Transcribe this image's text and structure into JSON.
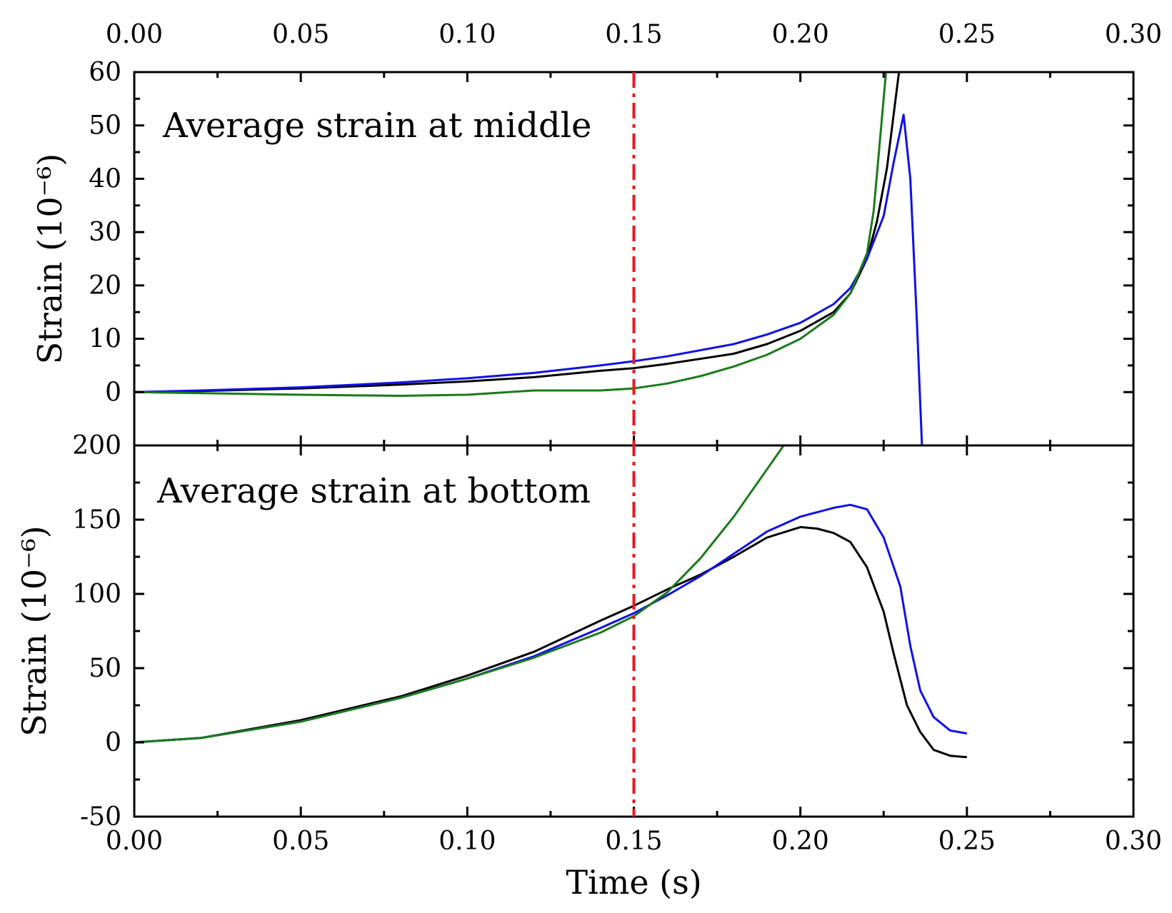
{
  "chart_data": {
    "type": "line",
    "xlabel": "Time (s)",
    "xlim": [
      0,
      0.3
    ],
    "x_ticks": [
      "0.00",
      "0.05",
      "0.10",
      "0.15",
      "0.20",
      "0.25",
      "0.30"
    ],
    "x_tick_values": [
      0,
      0.05,
      0.1,
      0.15,
      0.2,
      0.25,
      0.3
    ],
    "marker_line": {
      "x": 0.15,
      "color": "#e8191f",
      "style": "dash-dot"
    },
    "panels": [
      {
        "title": "Average strain at middle",
        "ylabel": "Strain (10⁻⁶)",
        "ylim": [
          -10,
          60
        ],
        "y_ticks": [
          "0",
          "10",
          "20",
          "30",
          "40",
          "50",
          "60"
        ],
        "y_tick_values": [
          0,
          10,
          20,
          30,
          40,
          50,
          60
        ],
        "series": [
          {
            "color": "#000000",
            "points": [
              [
                0,
                0
              ],
              [
                0.02,
                0.2
              ],
              [
                0.05,
                0.7
              ],
              [
                0.08,
                1.4
              ],
              [
                0.1,
                2.0
              ],
              [
                0.12,
                2.8
              ],
              [
                0.14,
                4.0
              ],
              [
                0.15,
                4.5
              ],
              [
                0.16,
                5.3
              ],
              [
                0.18,
                7.2
              ],
              [
                0.19,
                9.0
              ],
              [
                0.2,
                11.5
              ],
              [
                0.21,
                15.0
              ],
              [
                0.215,
                18.5
              ],
              [
                0.22,
                25.0
              ],
              [
                0.223,
                32.0
              ],
              [
                0.226,
                42.0
              ],
              [
                0.228,
                52.0
              ],
              [
                0.23,
                62.0
              ]
            ]
          },
          {
            "color": "#1010e8",
            "points": [
              [
                0,
                0
              ],
              [
                0.02,
                0.3
              ],
              [
                0.05,
                0.9
              ],
              [
                0.08,
                1.8
              ],
              [
                0.1,
                2.6
              ],
              [
                0.12,
                3.6
              ],
              [
                0.14,
                5.0
              ],
              [
                0.15,
                5.8
              ],
              [
                0.16,
                6.7
              ],
              [
                0.18,
                9.0
              ],
              [
                0.19,
                10.8
              ],
              [
                0.2,
                13.0
              ],
              [
                0.21,
                16.5
              ],
              [
                0.215,
                19.5
              ],
              [
                0.22,
                25.0
              ],
              [
                0.225,
                33.0
              ],
              [
                0.228,
                43.0
              ],
              [
                0.231,
                52.0
              ],
              [
                0.233,
                40.0
              ],
              [
                0.235,
                13.0
              ],
              [
                0.2365,
                -10.0
              ]
            ]
          },
          {
            "color": "#1a7a1a",
            "points": [
              [
                0,
                0
              ],
              [
                0.02,
                -0.2
              ],
              [
                0.05,
                -0.5
              ],
              [
                0.08,
                -0.7
              ],
              [
                0.1,
                -0.5
              ],
              [
                0.12,
                0.3
              ],
              [
                0.14,
                0.3
              ],
              [
                0.15,
                0.7
              ],
              [
                0.16,
                1.6
              ],
              [
                0.17,
                3.0
              ],
              [
                0.18,
                4.8
              ],
              [
                0.19,
                7.0
              ],
              [
                0.2,
                10.0
              ],
              [
                0.21,
                14.5
              ],
              [
                0.215,
                18.5
              ],
              [
                0.22,
                26.0
              ],
              [
                0.222,
                34.0
              ],
              [
                0.224,
                48.0
              ],
              [
                0.226,
                62.0
              ]
            ]
          }
        ]
      },
      {
        "title": "Average strain at bottom",
        "ylabel": "Strain (10⁻⁶)",
        "ylim": [
          -50,
          200
        ],
        "y_ticks": [
          "-50",
          "0",
          "50",
          "100",
          "150",
          "200"
        ],
        "y_tick_values": [
          -50,
          0,
          50,
          100,
          150,
          200
        ],
        "series": [
          {
            "color": "#000000",
            "points": [
              [
                0,
                0
              ],
              [
                0.02,
                3
              ],
              [
                0.05,
                15
              ],
              [
                0.08,
                31
              ],
              [
                0.1,
                45
              ],
              [
                0.12,
                61
              ],
              [
                0.14,
                82
              ],
              [
                0.15,
                92
              ],
              [
                0.16,
                103
              ],
              [
                0.17,
                113
              ],
              [
                0.18,
                125
              ],
              [
                0.19,
                138
              ],
              [
                0.2,
                145
              ],
              [
                0.205,
                144
              ],
              [
                0.21,
                141
              ],
              [
                0.215,
                135
              ],
              [
                0.22,
                118
              ],
              [
                0.225,
                88
              ],
              [
                0.228,
                60
              ],
              [
                0.232,
                25
              ],
              [
                0.236,
                7
              ],
              [
                0.24,
                -5
              ],
              [
                0.245,
                -9
              ],
              [
                0.25,
                -10
              ]
            ]
          },
          {
            "color": "#1010e8",
            "points": [
              [
                0,
                0
              ],
              [
                0.02,
                3
              ],
              [
                0.05,
                14
              ],
              [
                0.08,
                30
              ],
              [
                0.1,
                43
              ],
              [
                0.12,
                58
              ],
              [
                0.14,
                77
              ],
              [
                0.15,
                87
              ],
              [
                0.16,
                99
              ],
              [
                0.17,
                112
              ],
              [
                0.18,
                127
              ],
              [
                0.19,
                142
              ],
              [
                0.2,
                152
              ],
              [
                0.21,
                158
              ],
              [
                0.215,
                160
              ],
              [
                0.22,
                157
              ],
              [
                0.225,
                138
              ],
              [
                0.23,
                105
              ],
              [
                0.233,
                65
              ],
              [
                0.236,
                35
              ],
              [
                0.24,
                17
              ],
              [
                0.245,
                8
              ],
              [
                0.25,
                6
              ]
            ]
          },
          {
            "color": "#1a7a1a",
            "points": [
              [
                0,
                0
              ],
              [
                0.02,
                3
              ],
              [
                0.05,
                14
              ],
              [
                0.08,
                30
              ],
              [
                0.1,
                43
              ],
              [
                0.12,
                57
              ],
              [
                0.14,
                74
              ],
              [
                0.15,
                85
              ],
              [
                0.16,
                101
              ],
              [
                0.17,
                124
              ],
              [
                0.18,
                152
              ],
              [
                0.19,
                184
              ],
              [
                0.195,
                200
              ]
            ]
          }
        ]
      }
    ]
  }
}
